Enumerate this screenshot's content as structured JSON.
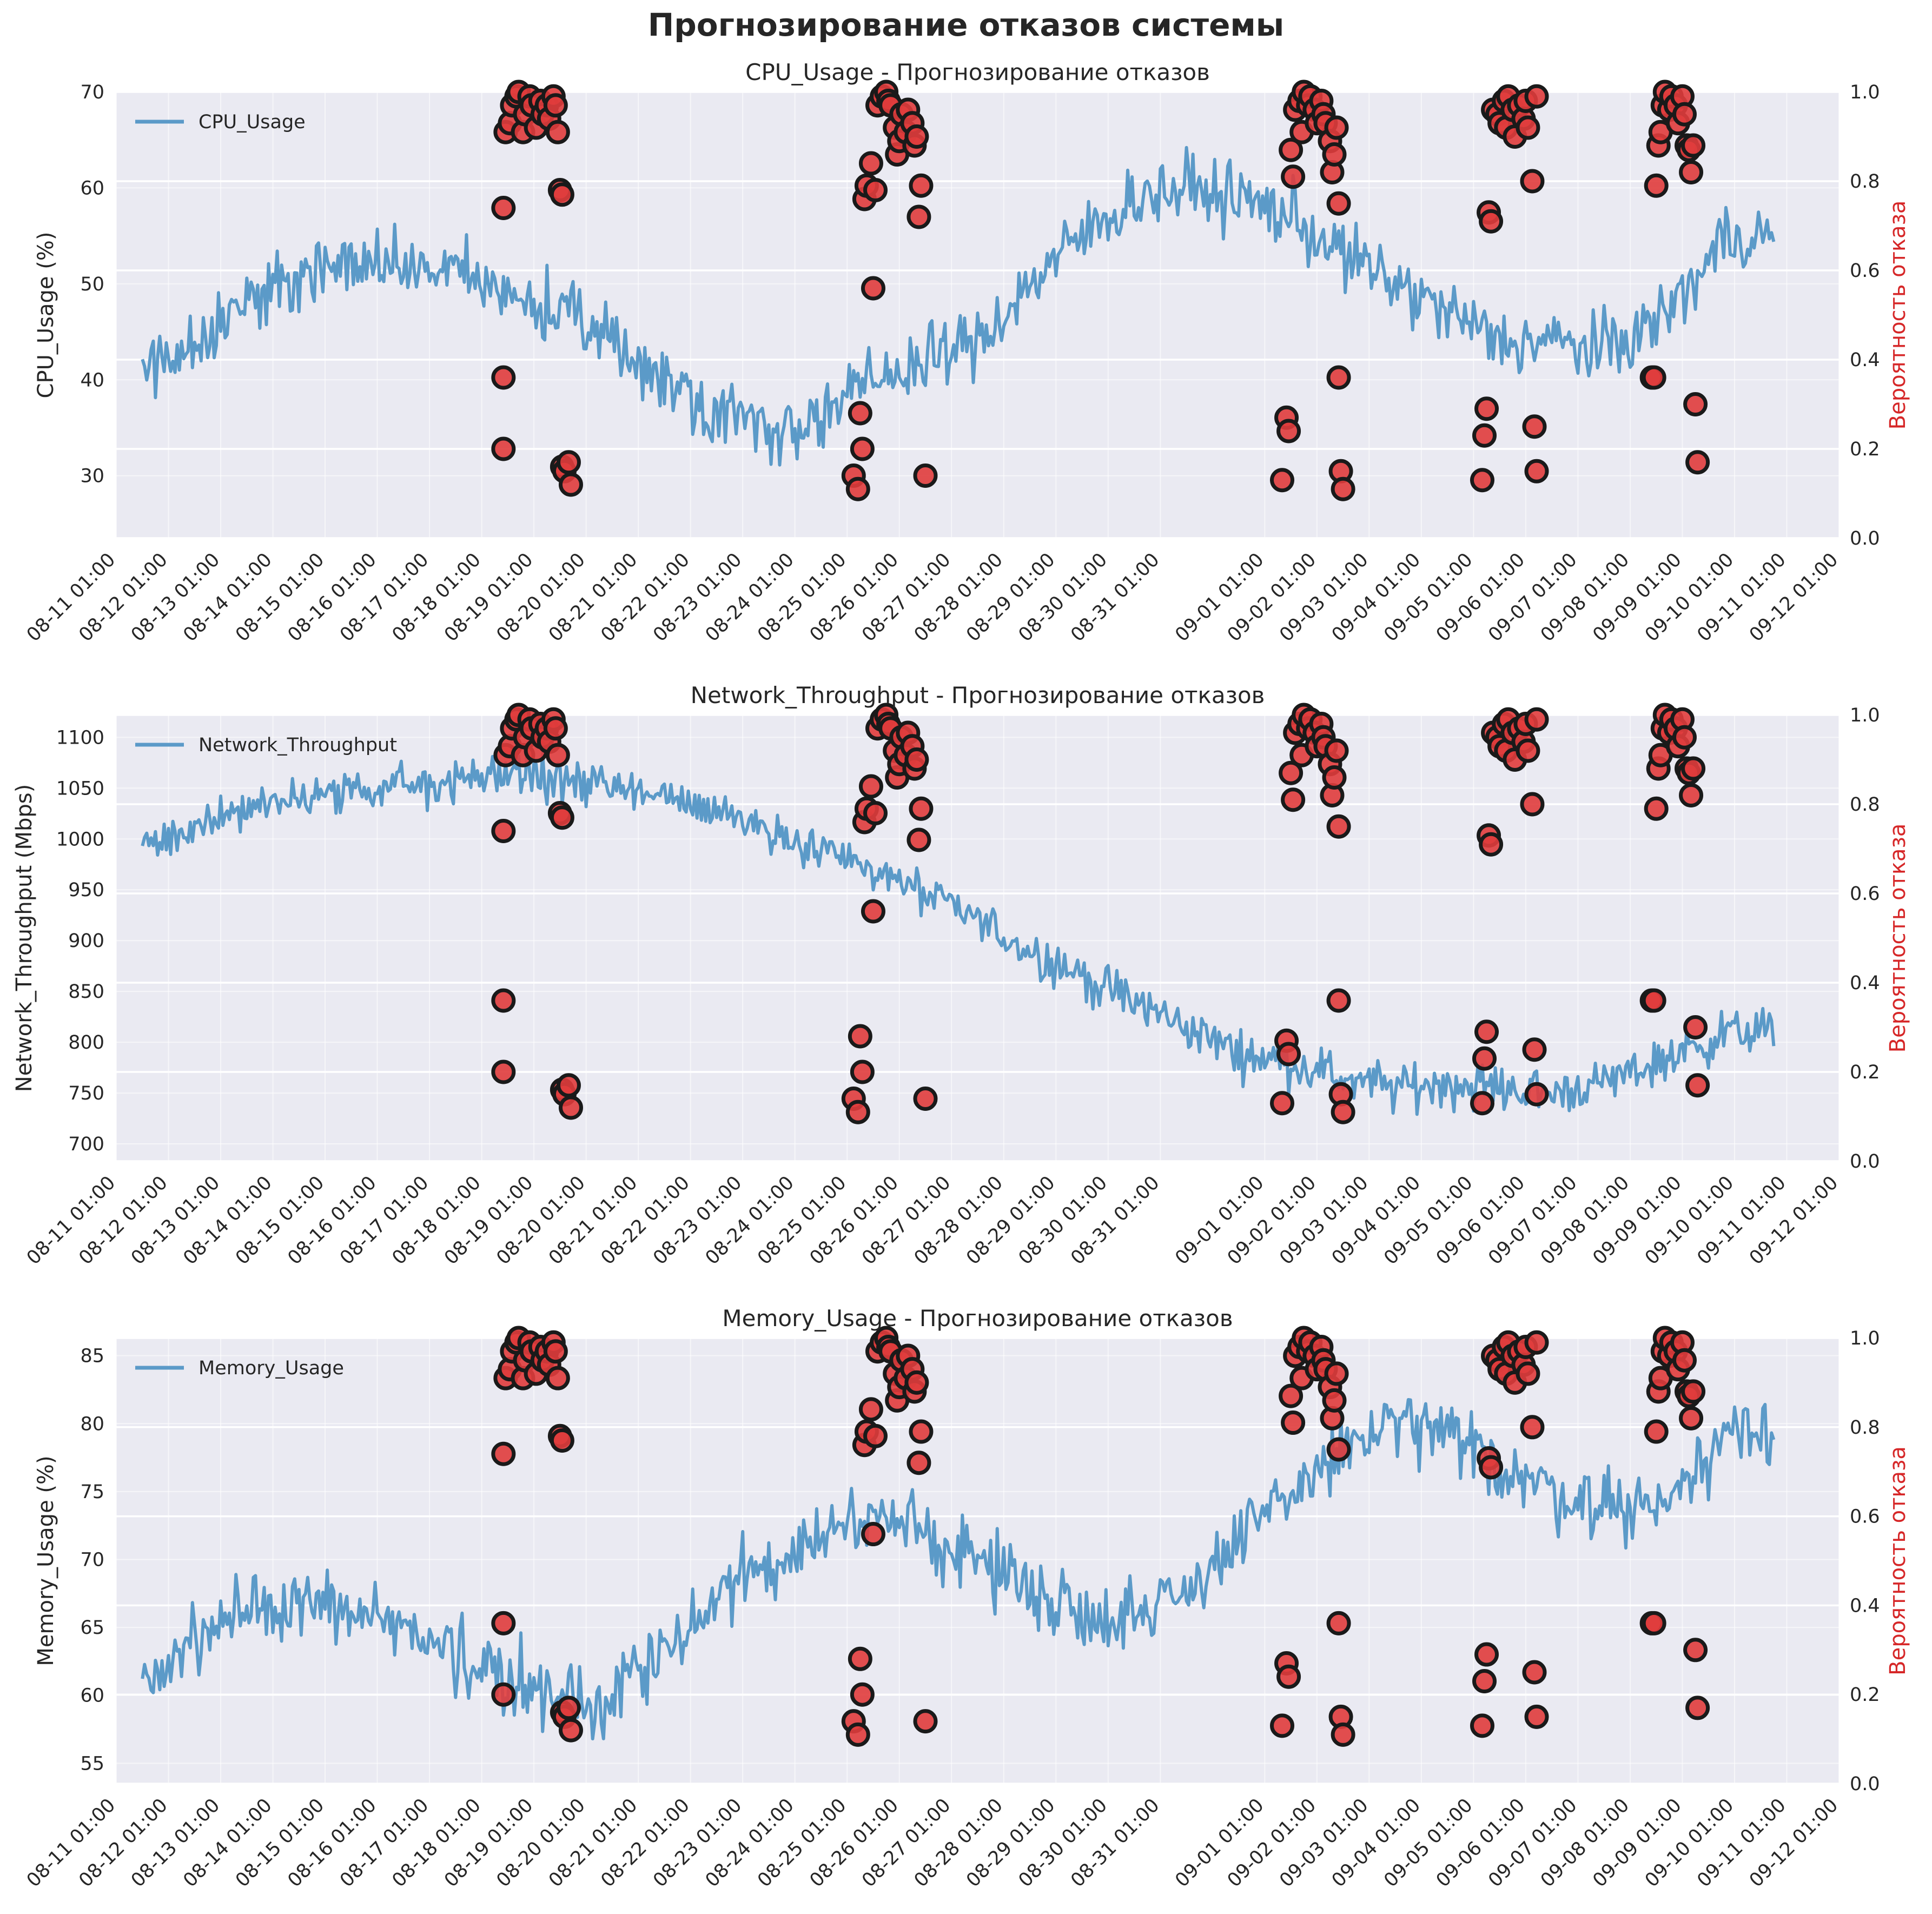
{
  "title": "Прогнозирование отказов системы",
  "colors": {
    "line": "#5b9ac8",
    "marker": "#e03c3c",
    "marker_edge": "#1a1a1a",
    "right_axis_label": "#d62728",
    "panel_bg": "#eaeaf2",
    "grid": "#ffffff"
  },
  "x_tick_labels": [
    "08-11 01:00",
    "08-12 01:00",
    "08-13 01:00",
    "08-14 01:00",
    "08-15 01:00",
    "08-16 01:00",
    "08-17 01:00",
    "08-18 01:00",
    "08-19 01:00",
    "08-20 01:00",
    "08-21 01:00",
    "08-22 01:00",
    "08-23 01:00",
    "08-24 01:00",
    "08-25 01:00",
    "08-26 01:00",
    "08-27 01:00",
    "08-28 01:00",
    "08-29 01:00",
    "08-30 01:00",
    "08-31 01:00",
    "09-01 01:00",
    "09-02 01:00",
    "09-03 01:00",
    "09-04 01:00",
    "09-05 01:00",
    "09-06 01:00",
    "09-07 01:00",
    "09-08 01:00",
    "09-09 01:00",
    "09-10 01:00",
    "09-11 01:00",
    "09-12 01:00"
  ],
  "x_range": [
    "08-11 01:00",
    "09-12 01:00"
  ],
  "failure_points": [
    [
      "08-18 11:00",
      0.36
    ],
    [
      "08-18 11:00",
      0.2
    ],
    [
      "08-18 11:00",
      0.74
    ],
    [
      "08-18 12:00",
      0.91
    ],
    [
      "08-18 14:00",
      0.93
    ],
    [
      "08-18 15:00",
      0.97
    ],
    [
      "08-18 17:00",
      0.99
    ],
    [
      "08-18 18:00",
      1.0
    ],
    [
      "08-18 20:00",
      0.91
    ],
    [
      "08-18 21:00",
      0.95
    ],
    [
      "08-18 23:00",
      0.99
    ],
    [
      "08-19 00:00",
      0.97
    ],
    [
      "08-19 02:00",
      0.92
    ],
    [
      "08-19 04:00",
      0.98
    ],
    [
      "08-19 05:00",
      0.95
    ],
    [
      "08-19 07:00",
      0.97
    ],
    [
      "08-19 08:00",
      0.94
    ],
    [
      "08-19 10:00",
      0.99
    ],
    [
      "08-19 11:00",
      0.97
    ],
    [
      "08-19 12:00",
      0.91
    ],
    [
      "08-19 13:00",
      0.78
    ],
    [
      "08-19 14:00",
      0.77
    ],
    [
      "08-19 14:00",
      0.16
    ],
    [
      "08-19 15:00",
      0.15
    ],
    [
      "08-19 17:00",
      0.17
    ],
    [
      "08-19 18:00",
      0.12
    ],
    [
      "08-25 04:00",
      0.14
    ],
    [
      "08-25 06:00",
      0.11
    ],
    [
      "08-25 07:00",
      0.28
    ],
    [
      "08-25 08:00",
      0.2
    ],
    [
      "08-25 09:00",
      0.76
    ],
    [
      "08-25 10:00",
      0.79
    ],
    [
      "08-25 12:00",
      0.84
    ],
    [
      "08-25 13:00",
      0.56
    ],
    [
      "08-25 14:00",
      0.78
    ],
    [
      "08-25 15:00",
      0.97
    ],
    [
      "08-25 17:00",
      0.99
    ],
    [
      "08-25 19:00",
      1.0
    ],
    [
      "08-25 20:00",
      0.98
    ],
    [
      "08-25 21:00",
      0.97
    ],
    [
      "08-25 23:00",
      0.92
    ],
    [
      "08-26 00:00",
      0.86
    ],
    [
      "08-26 01:00",
      0.89
    ],
    [
      "08-26 02:00",
      0.95
    ],
    [
      "08-26 04:00",
      0.91
    ],
    [
      "08-26 05:00",
      0.96
    ],
    [
      "08-26 07:00",
      0.93
    ],
    [
      "08-26 08:00",
      0.88
    ],
    [
      "08-26 09:00",
      0.9
    ],
    [
      "08-26 10:00",
      0.72
    ],
    [
      "08-26 11:00",
      0.79
    ],
    [
      "08-26 13:00",
      0.14
    ],
    [
      "09-01 09:00",
      0.13
    ],
    [
      "09-01 11:00",
      0.27
    ],
    [
      "09-01 12:00",
      0.24
    ],
    [
      "09-01 13:00",
      0.87
    ],
    [
      "09-01 14:00",
      0.81
    ],
    [
      "09-01 15:00",
      0.96
    ],
    [
      "09-01 17:00",
      0.98
    ],
    [
      "09-01 18:00",
      0.91
    ],
    [
      "09-01 19:00",
      1.0
    ],
    [
      "09-01 21:00",
      0.97
    ],
    [
      "09-01 22:00",
      0.99
    ],
    [
      "09-02 00:00",
      0.96
    ],
    [
      "09-02 01:00",
      0.93
    ],
    [
      "09-02 03:00",
      0.98
    ],
    [
      "09-02 04:00",
      0.95
    ],
    [
      "09-02 05:00",
      0.93
    ],
    [
      "09-02 07:00",
      0.89
    ],
    [
      "09-02 08:00",
      0.82
    ],
    [
      "09-02 09:00",
      0.86
    ],
    [
      "09-02 10:00",
      0.92
    ],
    [
      "09-02 11:00",
      0.75
    ],
    [
      "09-02 11:00",
      0.36
    ],
    [
      "09-02 12:00",
      0.15
    ],
    [
      "09-02 13:00",
      0.11
    ],
    [
      "09-05 05:00",
      0.13
    ],
    [
      "09-05 06:00",
      0.23
    ],
    [
      "09-05 07:00",
      0.29
    ],
    [
      "09-05 08:00",
      0.73
    ],
    [
      "09-05 09:00",
      0.71
    ],
    [
      "09-05 10:00",
      0.96
    ],
    [
      "09-05 12:00",
      0.95
    ],
    [
      "09-05 13:00",
      0.93
    ],
    [
      "09-05 15:00",
      0.98
    ],
    [
      "09-05 16:00",
      0.92
    ],
    [
      "09-05 17:00",
      0.99
    ],
    [
      "09-05 19:00",
      0.96
    ],
    [
      "09-05 20:00",
      0.9
    ],
    [
      "09-05 22:00",
      0.97
    ],
    [
      "09-06 00:00",
      0.94
    ],
    [
      "09-06 01:00",
      0.98
    ],
    [
      "09-06 02:00",
      0.92
    ],
    [
      "09-06 04:00",
      0.8
    ],
    [
      "09-06 05:00",
      0.25
    ],
    [
      "09-06 06:00",
      0.15
    ],
    [
      "09-06 06:00",
      0.99
    ],
    [
      "09-08 11:00",
      0.36
    ],
    [
      "09-08 12:00",
      0.36
    ],
    [
      "09-08 13:00",
      0.79
    ],
    [
      "09-08 14:00",
      0.88
    ],
    [
      "09-08 15:00",
      0.91
    ],
    [
      "09-08 16:00",
      0.97
    ],
    [
      "09-08 17:00",
      1.0
    ],
    [
      "09-08 19:00",
      0.96
    ],
    [
      "09-08 20:00",
      0.99
    ],
    [
      "09-08 22:00",
      0.97
    ],
    [
      "09-08 23:00",
      0.93
    ],
    [
      "09-09 01:00",
      0.99
    ],
    [
      "09-09 02:00",
      0.95
    ],
    [
      "09-09 03:00",
      0.88
    ],
    [
      "09-09 04:00",
      0.87
    ],
    [
      "09-09 05:00",
      0.82
    ],
    [
      "09-09 06:00",
      0.88
    ],
    [
      "09-09 07:00",
      0.3
    ],
    [
      "09-09 08:00",
      0.17
    ]
  ],
  "chart_data": [
    {
      "type": "line",
      "title": "CPU_Usage - Прогнозирование отказов",
      "ylabel": "CPU_Usage (%)",
      "y2label": "Вероятность отказа",
      "legend": "CPU_Usage",
      "legend_placement": "top-left",
      "ylim": [
        23.5,
        70
      ],
      "y_ticks": [
        30,
        40,
        50,
        60,
        70
      ],
      "y2lim": [
        0,
        1
      ],
      "y2_ticks": [
        "0.0",
        "0.2",
        "0.4",
        "0.6",
        "0.8",
        "1.0"
      ],
      "x_start": "08-11 13:00",
      "x_end": "09-10 19:00",
      "step_hours": 1,
      "anchors": [
        [
          0,
          41
        ],
        [
          24,
          44
        ],
        [
          48,
          48
        ],
        [
          72,
          51
        ],
        [
          96,
          52
        ],
        [
          120,
          52
        ],
        [
          144,
          51
        ],
        [
          168,
          49
        ],
        [
          192,
          47
        ],
        [
          216,
          44
        ],
        [
          240,
          40
        ],
        [
          264,
          37
        ],
        [
          288,
          35
        ],
        [
          312,
          36
        ],
        [
          336,
          40
        ],
        [
          360,
          42
        ],
        [
          384,
          44
        ],
        [
          408,
          50
        ],
        [
          432,
          55
        ],
        [
          456,
          59
        ],
        [
          480,
          60
        ],
        [
          504,
          59
        ],
        [
          528,
          57
        ],
        [
          552,
          53
        ],
        [
          576,
          50
        ],
        [
          600,
          47
        ],
        [
          624,
          44
        ],
        [
          648,
          44
        ],
        [
          672,
          43
        ],
        [
          696,
          46
        ],
        [
          720,
          52
        ],
        [
          726,
          55
        ]
      ],
      "noise_amp": 3.5,
      "failure_points": "failure_points",
      "grid": true
    },
    {
      "type": "line",
      "title": "Network_Throughput - Прогнозирование отказов",
      "ylabel": "Network_Throughput (Mbps)",
      "y2label": "Вероятность отказа",
      "legend": "Network_Throughput",
      "legend_placement": "top-left",
      "ylim": [
        683,
        1122
      ],
      "y_ticks": [
        700,
        750,
        800,
        850,
        900,
        950,
        1000,
        1050,
        1100
      ],
      "y2lim": [
        0,
        1
      ],
      "y2_ticks": [
        "0.0",
        "0.2",
        "0.4",
        "0.6",
        "0.8",
        "1.0"
      ],
      "x_start": "08-11 13:00",
      "x_end": "09-10 19:00",
      "step_hours": 1,
      "anchors": [
        [
          0,
          990
        ],
        [
          24,
          1010
        ],
        [
          48,
          1030
        ],
        [
          72,
          1040
        ],
        [
          96,
          1045
        ],
        [
          120,
          1050
        ],
        [
          144,
          1060
        ],
        [
          168,
          1065
        ],
        [
          192,
          1060
        ],
        [
          216,
          1050
        ],
        [
          240,
          1040
        ],
        [
          264,
          1030
        ],
        [
          288,
          1010
        ],
        [
          312,
          990
        ],
        [
          336,
          970
        ],
        [
          360,
          945
        ],
        [
          384,
          920
        ],
        [
          408,
          890
        ],
        [
          432,
          865
        ],
        [
          456,
          840
        ],
        [
          480,
          815
        ],
        [
          504,
          790
        ],
        [
          528,
          780
        ],
        [
          552,
          765
        ],
        [
          576,
          755
        ],
        [
          600,
          760
        ],
        [
          624,
          755
        ],
        [
          648,
          750
        ],
        [
          672,
          760
        ],
        [
          696,
          780
        ],
        [
          720,
          800
        ],
        [
          726,
          810
        ]
      ],
      "noise_amp": 22,
      "failure_points": "failure_points",
      "grid": true
    },
    {
      "type": "line",
      "title": "Memory_Usage - Прогнозирование отказов",
      "ylabel": "Memory_Usage (%)",
      "y2label": "Вероятность отказа",
      "legend": "Memory_Usage",
      "legend_placement": "top-left",
      "ylim": [
        53.5,
        86.3
      ],
      "y_ticks": [
        55,
        60,
        65,
        70,
        75,
        80,
        85
      ],
      "y2lim": [
        0,
        1
      ],
      "y2_ticks": [
        "0.0",
        "0.2",
        "0.4",
        "0.6",
        "0.8",
        "1.0"
      ],
      "x_start": "08-11 13:00",
      "x_end": "09-10 19:00",
      "step_hours": 1,
      "anchors": [
        [
          0,
          61
        ],
        [
          24,
          64
        ],
        [
          48,
          66
        ],
        [
          72,
          67
        ],
        [
          96,
          66
        ],
        [
          120,
          65
        ],
        [
          144,
          63
        ],
        [
          168,
          61
        ],
        [
          192,
          60
        ],
        [
          216,
          60
        ],
        [
          240,
          63
        ],
        [
          264,
          67
        ],
        [
          288,
          70
        ],
        [
          312,
          72
        ],
        [
          336,
          73
        ],
        [
          360,
          72
        ],
        [
          384,
          70
        ],
        [
          408,
          68
        ],
        [
          432,
          66
        ],
        [
          456,
          66
        ],
        [
          480,
          68
        ],
        [
          504,
          71
        ],
        [
          528,
          75
        ],
        [
          552,
          78
        ],
        [
          576,
          80
        ],
        [
          600,
          79
        ],
        [
          624,
          77
        ],
        [
          648,
          75
        ],
        [
          672,
          74
        ],
        [
          696,
          74
        ],
        [
          720,
          77
        ],
        [
          726,
          80
        ]
      ],
      "noise_amp": 2.6,
      "failure_points": "failure_points",
      "grid": true
    }
  ]
}
